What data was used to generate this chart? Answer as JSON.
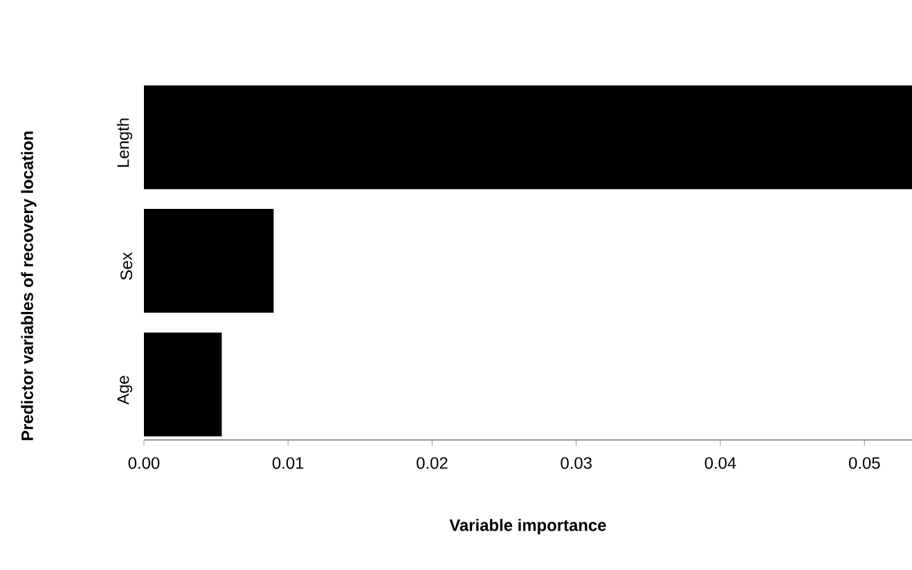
{
  "chart_data": {
    "type": "bar",
    "orientation": "horizontal",
    "xlabel": "Variable importance",
    "ylabel": "Predictor variables of recovery location",
    "categories": [
      "Length",
      "Sex",
      "Age"
    ],
    "values": [
      0.0533,
      0.009,
      0.0054
    ],
    "color": "#000000",
    "xlim": [
      0,
      0.0533
    ],
    "xticks": [
      {
        "value": 0,
        "label": "0.00"
      },
      {
        "value": 0.01,
        "label": "0.01"
      },
      {
        "value": 0.02,
        "label": "0.02"
      },
      {
        "value": 0.03,
        "label": "0.03"
      },
      {
        "value": 0.04,
        "label": "0.04"
      },
      {
        "value": 0.05,
        "label": "0.05"
      }
    ],
    "grid": false
  }
}
